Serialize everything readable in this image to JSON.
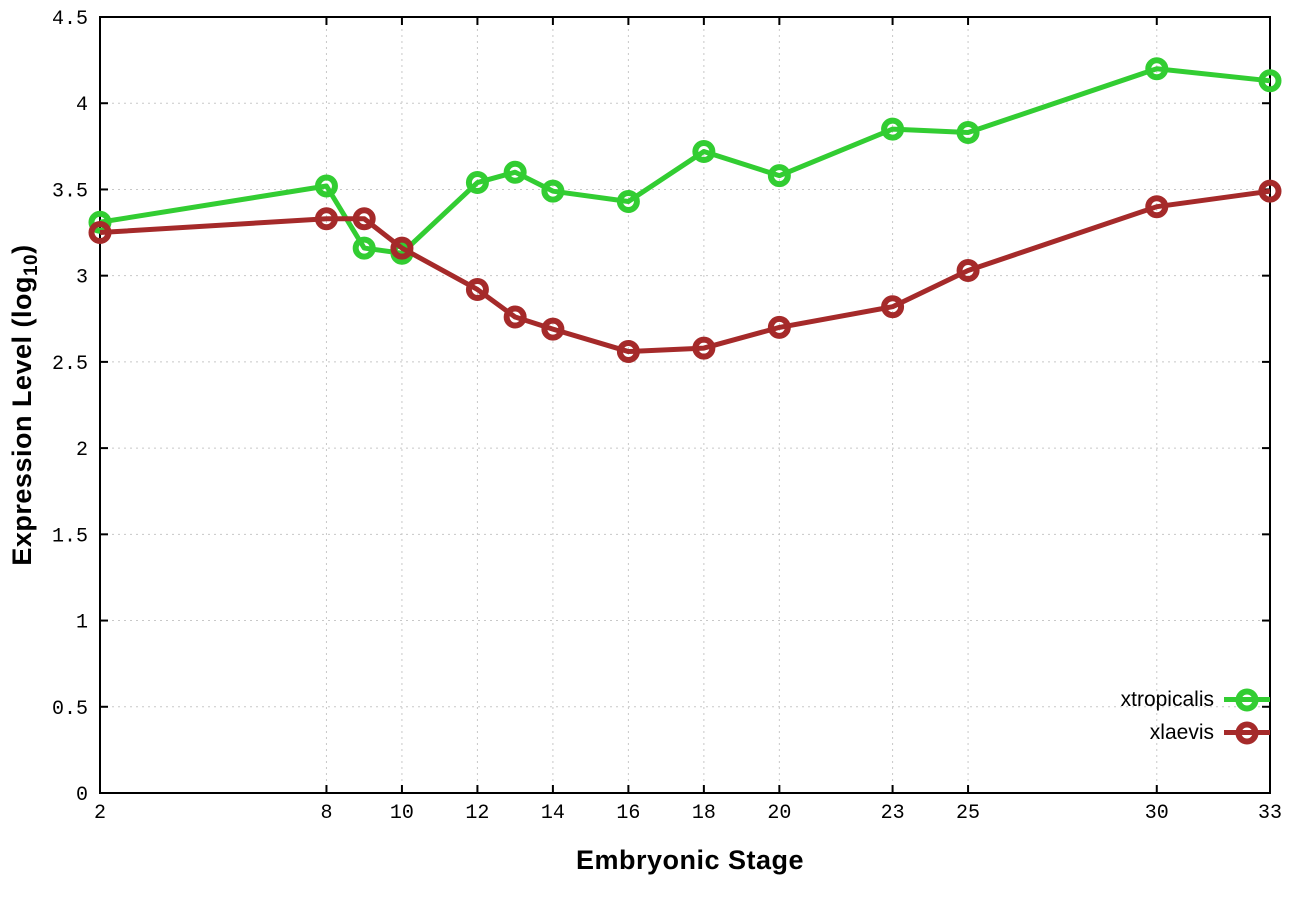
{
  "chart_data": {
    "type": "line",
    "title": "",
    "xlabel": "Embryonic Stage",
    "ylabel_prefix": "Expression Level (log",
    "ylabel_sub": "10",
    "ylabel_suffix": ")",
    "xlim": [
      2,
      33
    ],
    "ylim": [
      0,
      4.5
    ],
    "grid": true,
    "legend_position": "bottom-right",
    "marker": "open-circle",
    "x": [
      2,
      8,
      9,
      10,
      12,
      13,
      14,
      16,
      18,
      20,
      23,
      25,
      30,
      33
    ],
    "series": [
      {
        "name": "xtropicalis",
        "color": "#32cd32",
        "values": [
          3.31,
          3.52,
          3.16,
          3.13,
          3.54,
          3.6,
          3.49,
          3.43,
          3.72,
          3.58,
          3.85,
          3.83,
          4.2,
          4.13
        ]
      },
      {
        "name": "xlaevis",
        "color": "#a52a2a",
        "values": [
          3.25,
          3.33,
          3.33,
          3.16,
          2.92,
          2.76,
          2.69,
          2.56,
          2.58,
          2.7,
          2.82,
          3.03,
          3.4,
          3.49
        ]
      }
    ],
    "xticks": {
      "values": [
        2,
        8,
        10,
        12,
        14,
        16,
        18,
        20,
        23,
        25,
        30,
        33
      ],
      "labels": [
        "2",
        "8",
        "10",
        "12",
        "14",
        "16",
        "18",
        "20",
        "23",
        "25",
        "30",
        "33"
      ]
    },
    "yticks": {
      "values": [
        0,
        0.5,
        1,
        1.5,
        2,
        2.5,
        3,
        3.5,
        4,
        4.5
      ],
      "labels": [
        "0",
        "0.5",
        "1",
        "1.5",
        "2",
        "2.5",
        "3",
        "3.5",
        "4",
        "4.5"
      ]
    },
    "grid_color": "#c8c8c8",
    "border_color": "#000000"
  }
}
